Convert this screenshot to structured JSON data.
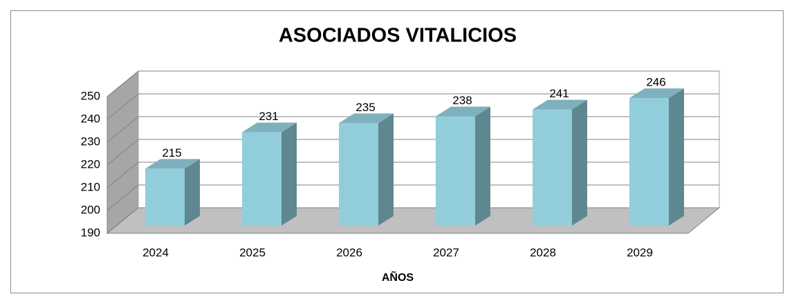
{
  "chart_data": {
    "type": "bar3d",
    "title": "ASOCIADOS VITALICIOS",
    "categories": [
      "2024",
      "2025",
      "2026",
      "2027",
      "2028",
      "2029"
    ],
    "values": [
      215,
      231,
      235,
      238,
      241,
      246
    ],
    "color": "#92cddc",
    "x_label": "AÑOS",
    "ylim": [
      190,
      250
    ],
    "yticks": [
      190,
      200,
      210,
      220,
      230,
      240,
      250
    ],
    "grid": true
  }
}
